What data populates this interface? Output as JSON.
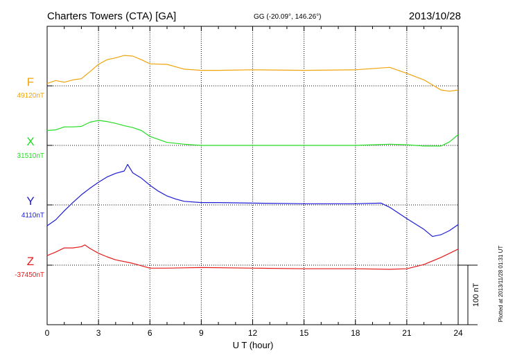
{
  "chart_data": {
    "type": "line",
    "title": "Charters Towers (CTA)  [GA]",
    "coords": "GG (-20.09°, 146.26°)",
    "date": "2013/10/28",
    "xlabel": "U T (hour)",
    "xlim": [
      0,
      24
    ],
    "x_ticks": [
      0,
      3,
      6,
      9,
      12,
      15,
      18,
      21,
      24
    ],
    "x_tick_labels": [
      "0",
      "3",
      "6",
      "9",
      "12",
      "15",
      "18",
      "21",
      "24"
    ],
    "grid": "dotted",
    "scale_bar_label": "100 nT",
    "scale_bar_nT": 100,
    "plotted_note": "Plotted at 2013/11/28 01:31  UT",
    "y_span_nT": 400,
    "series": [
      {
        "name": "F",
        "base_label": "49120nT",
        "base": 49120,
        "color": "#f0a30a",
        "x": [
          0,
          0.5,
          1,
          1.5,
          2,
          2.5,
          3,
          3.5,
          4,
          4.5,
          5,
          5.5,
          6,
          7,
          8,
          9,
          10,
          12,
          15,
          18,
          20,
          21,
          22,
          23,
          23.5,
          24
        ],
        "values": [
          49124,
          49129,
          49126,
          49130,
          49132,
          49144,
          49156,
          49164,
          49167,
          49171,
          49170,
          49164,
          49157,
          49156,
          49148,
          49146,
          49146,
          49147,
          49146,
          49147,
          49151,
          49141,
          49130,
          49113,
          49111,
          49113
        ]
      },
      {
        "name": "X",
        "base_label": "31510nT",
        "base": 31510,
        "color": "#22dd22",
        "x": [
          0,
          0.5,
          1,
          1.5,
          2,
          2.5,
          3,
          3.5,
          4,
          4.5,
          5,
          5.5,
          6,
          7,
          8,
          9,
          10,
          12,
          15,
          18,
          20,
          21,
          22,
          23,
          23.5,
          24
        ],
        "values": [
          31535,
          31536,
          31541,
          31541,
          31542,
          31549,
          31552,
          31550,
          31547,
          31543,
          31540,
          31535,
          31525,
          31515,
          31512,
          31510,
          31510,
          31510,
          31510,
          31510,
          31512,
          31511,
          31509,
          31509,
          31516,
          31528
        ]
      },
      {
        "name": "Y",
        "base_label": "4110nT",
        "base": 4110,
        "color": "#1b1bd6",
        "x": [
          0,
          0.5,
          1,
          1.5,
          2,
          2.5,
          3,
          3.5,
          4,
          4.5,
          4.7,
          5,
          5.5,
          6,
          6.5,
          7,
          7.5,
          8,
          9,
          10,
          12,
          15,
          18,
          19.5,
          20,
          21,
          22,
          22.5,
          23,
          23.5,
          24
        ],
        "values": [
          4075,
          4085,
          4100,
          4114,
          4127,
          4138,
          4148,
          4157,
          4163,
          4167,
          4178,
          4164,
          4155,
          4143,
          4133,
          4125,
          4120,
          4116,
          4114,
          4114,
          4113,
          4112,
          4112,
          4113,
          4106,
          4087,
          4069,
          4057,
          4060,
          4067,
          4077
        ]
      },
      {
        "name": "Z",
        "base_label": "-37450nT",
        "base": -37450,
        "color": "#e41a1a",
        "x": [
          0,
          0.5,
          1,
          1.5,
          2,
          2.2,
          2.5,
          3,
          3.5,
          4,
          5,
          6,
          7,
          9,
          12,
          15,
          18,
          20,
          21,
          22,
          23,
          24
        ],
        "values": [
          -37434,
          -37428,
          -37421,
          -37421,
          -37419,
          -37416,
          -37422,
          -37430,
          -37436,
          -37441,
          -37447,
          -37455,
          -37455,
          -37454,
          -37455,
          -37456,
          -37456,
          -37457,
          -37456,
          -37449,
          -37437,
          -37423
        ]
      }
    ]
  }
}
